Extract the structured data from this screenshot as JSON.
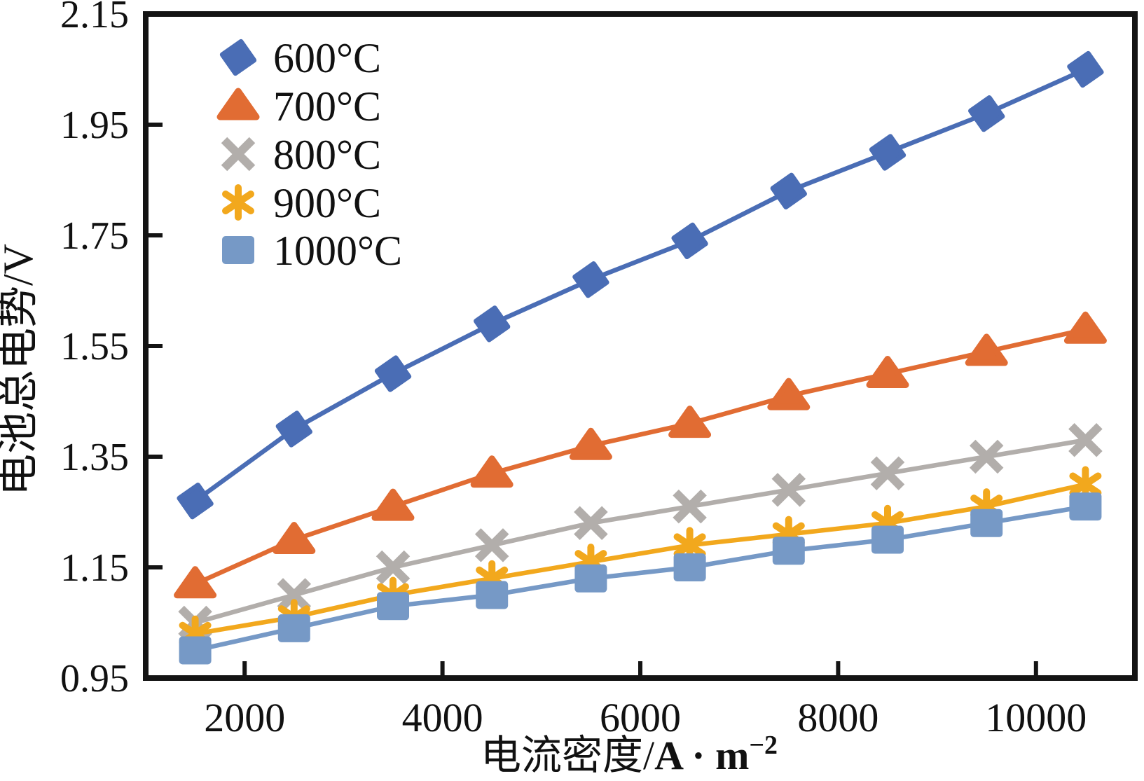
{
  "chart_data": {
    "type": "line",
    "title": "",
    "xlabel_cjk": "电流密度/",
    "xlabel_unit": "A · m",
    "xlabel_sup": "−2",
    "ylabel": "电池总电势/V",
    "x": [
      1500,
      2500,
      3500,
      4500,
      5500,
      6500,
      7500,
      8500,
      9500,
      10500
    ],
    "xlim": [
      1000,
      11000
    ],
    "ylim": [
      0.95,
      2.15
    ],
    "x_ticks": [
      2000,
      4000,
      6000,
      8000,
      10000
    ],
    "x_tick_labels": [
      "2000",
      "4000",
      "6000",
      "8000",
      "10000"
    ],
    "y_ticks": [
      0.95,
      1.15,
      1.35,
      1.55,
      1.75,
      1.95,
      2.15
    ],
    "y_tick_labels": [
      "0.95",
      "1.15",
      "1.35",
      "1.55",
      "1.75",
      "1.95",
      "2.15"
    ],
    "grid": false,
    "legend_position": "top-left",
    "axis_color": "#141414",
    "text_color": "#111111",
    "background": "#ffffff",
    "series": [
      {
        "label": "600°C",
        "marker": "diamond",
        "color": "#4a6db5",
        "values": [
          1.27,
          1.4,
          1.5,
          1.59,
          1.67,
          1.74,
          1.83,
          1.9,
          1.97,
          2.05
        ]
      },
      {
        "label": "700°C",
        "marker": "triangle",
        "color": "#e16c33",
        "values": [
          1.12,
          1.2,
          1.26,
          1.32,
          1.37,
          1.41,
          1.46,
          1.5,
          1.54,
          1.58
        ]
      },
      {
        "label": "800°C",
        "marker": "xmark",
        "color": "#b2aeab",
        "values": [
          1.05,
          1.1,
          1.15,
          1.19,
          1.23,
          1.26,
          1.29,
          1.32,
          1.35,
          1.38
        ]
      },
      {
        "label": "900°C",
        "marker": "asterisk",
        "color": "#f2a81d",
        "values": [
          1.03,
          1.06,
          1.1,
          1.13,
          1.16,
          1.19,
          1.21,
          1.23,
          1.26,
          1.3
        ]
      },
      {
        "label": "1000°C",
        "marker": "square",
        "color": "#7699c6",
        "values": [
          1.0,
          1.04,
          1.08,
          1.1,
          1.13,
          1.15,
          1.18,
          1.2,
          1.23,
          1.26
        ]
      }
    ]
  }
}
